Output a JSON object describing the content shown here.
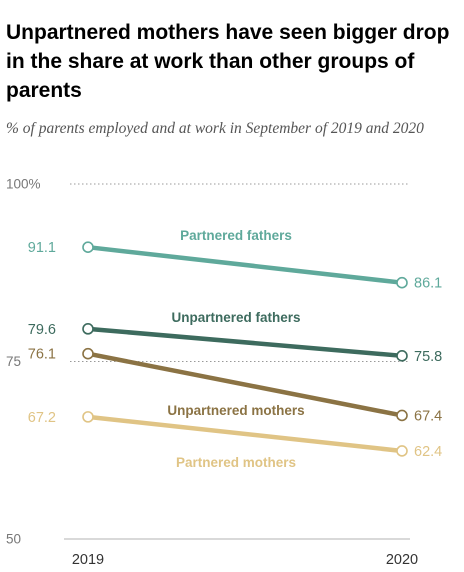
{
  "title": "Unpartnered mothers have seen bigger drop in the share at work than other groups of parents",
  "subtitle": "% of parents employed and at work in September of 2019 and 2020",
  "chart_data": {
    "type": "line",
    "x": [
      "2019",
      "2020"
    ],
    "ylim": [
      50,
      100
    ],
    "yticks": [
      {
        "value": 100,
        "label": "100%"
      },
      {
        "value": 75,
        "label": "75"
      },
      {
        "value": 50,
        "label": "50"
      }
    ],
    "series": [
      {
        "name": "Partnered fathers",
        "values": [
          91.1,
          86.1
        ],
        "labels": [
          "91.1",
          "86.1"
        ],
        "color": "#5fa99b"
      },
      {
        "name": "Unpartnered fathers",
        "values": [
          79.6,
          75.8
        ],
        "labels": [
          "79.6",
          "75.8"
        ],
        "color": "#3d6b5e"
      },
      {
        "name": "Unpartnered mothers",
        "values": [
          76.1,
          67.4
        ],
        "labels": [
          "76.1",
          "67.4"
        ],
        "color": "#8b7344"
      },
      {
        "name": "Partnered mothers",
        "values": [
          67.2,
          62.4
        ],
        "labels": [
          "67.2",
          "62.4"
        ],
        "color": "#e0c485"
      }
    ]
  }
}
